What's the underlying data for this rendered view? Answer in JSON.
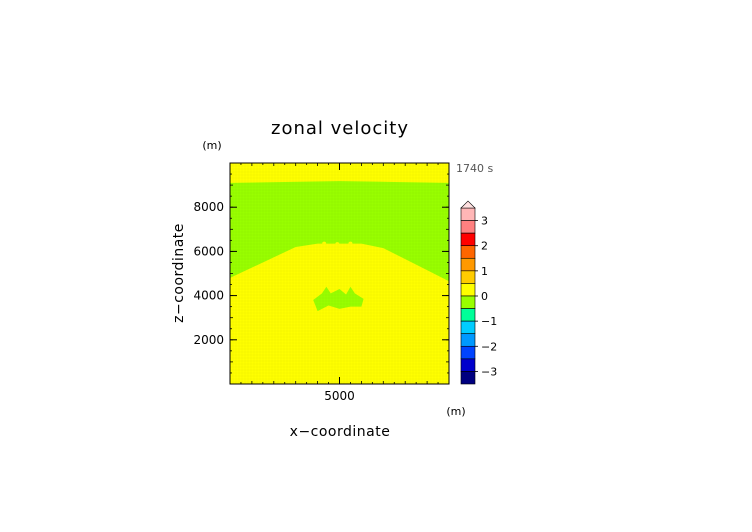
{
  "chart_data": {
    "type": "heatmap",
    "title": "zonal velocity",
    "time_label": "1740 s",
    "xlabel": "x−coordinate",
    "ylabel": "z−coordinate",
    "x_unit": "(m)",
    "y_unit": "(m)",
    "xlim": [
      0,
      10000
    ],
    "ylim": [
      0,
      10000
    ],
    "x_ticks": [
      5000
    ],
    "x_tick_labels": [
      "5000"
    ],
    "y_ticks": [
      2000,
      4000,
      6000,
      8000
    ],
    "y_tick_labels": [
      "2000",
      "4000",
      "6000",
      "8000"
    ],
    "colorbar": {
      "tick_labels": [
        "3",
        "2",
        "1",
        "0",
        "−1",
        "−2",
        "−3"
      ],
      "tick_values": [
        3,
        2,
        1,
        0,
        -1,
        -2,
        -3
      ],
      "colors": [
        "#ffb6b6",
        "#ff8080",
        "#ff0000",
        "#ff6600",
        "#ff9900",
        "#ffcc00",
        "#ffff00",
        "#99ff00",
        "#00ff99",
        "#00ccff",
        "#0099ff",
        "#0044ff",
        "#0000cc",
        "#000080"
      ]
    },
    "regions": [
      {
        "label": "0",
        "color": "#ffff00",
        "description": "background, z below arch and above 9100 m"
      },
      {
        "label": "0",
        "color": "#99ff00",
        "description": "upper layer between arch and ~9100 m"
      },
      {
        "label": "0",
        "color": "#99ff00",
        "description": "small blob near x~5000, z~3700"
      }
    ],
    "upper_green_top_z": 9100,
    "arch_profile": [
      [
        0,
        4800
      ],
      [
        1500,
        5500
      ],
      [
        3000,
        6200
      ],
      [
        4000,
        6350
      ],
      [
        5000,
        6350
      ],
      [
        6000,
        6350
      ],
      [
        7000,
        6150
      ],
      [
        8500,
        5400
      ],
      [
        10000,
        4650
      ]
    ],
    "blob_outline": [
      [
        3800,
        3800
      ],
      [
        4200,
        4100
      ],
      [
        4400,
        4400
      ],
      [
        4600,
        4100
      ],
      [
        5000,
        4300
      ],
      [
        5300,
        4050
      ],
      [
        5500,
        4400
      ],
      [
        5700,
        4100
      ],
      [
        6100,
        3850
      ],
      [
        6000,
        3500
      ],
      [
        5500,
        3500
      ],
      [
        5000,
        3400
      ],
      [
        4500,
        3550
      ],
      [
        4000,
        3300
      ],
      [
        3900,
        3550
      ]
    ]
  }
}
